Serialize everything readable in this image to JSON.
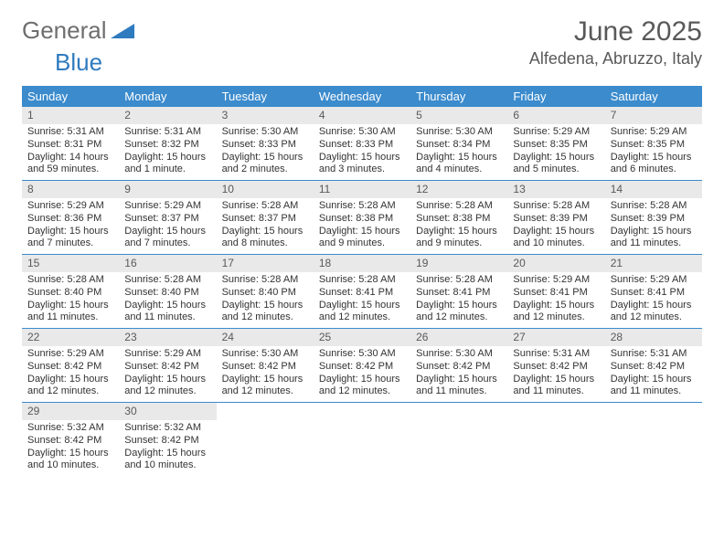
{
  "brand": {
    "word1": "General",
    "word2": "Blue"
  },
  "title": "June 2025",
  "location": "Alfedena, Abruzzo, Italy",
  "colors": {
    "accent": "#3b8bcd",
    "daynum_bg": "#e9e9e9",
    "text": "#333333",
    "muted": "#595959"
  },
  "day_headers": [
    "Sunday",
    "Monday",
    "Tuesday",
    "Wednesday",
    "Thursday",
    "Friday",
    "Saturday"
  ],
  "days": [
    {
      "n": "1",
      "sunrise": "Sunrise: 5:31 AM",
      "sunset": "Sunset: 8:31 PM",
      "daylight": "Daylight: 14 hours and 59 minutes."
    },
    {
      "n": "2",
      "sunrise": "Sunrise: 5:31 AM",
      "sunset": "Sunset: 8:32 PM",
      "daylight": "Daylight: 15 hours and 1 minute."
    },
    {
      "n": "3",
      "sunrise": "Sunrise: 5:30 AM",
      "sunset": "Sunset: 8:33 PM",
      "daylight": "Daylight: 15 hours and 2 minutes."
    },
    {
      "n": "4",
      "sunrise": "Sunrise: 5:30 AM",
      "sunset": "Sunset: 8:33 PM",
      "daylight": "Daylight: 15 hours and 3 minutes."
    },
    {
      "n": "5",
      "sunrise": "Sunrise: 5:30 AM",
      "sunset": "Sunset: 8:34 PM",
      "daylight": "Daylight: 15 hours and 4 minutes."
    },
    {
      "n": "6",
      "sunrise": "Sunrise: 5:29 AM",
      "sunset": "Sunset: 8:35 PM",
      "daylight": "Daylight: 15 hours and 5 minutes."
    },
    {
      "n": "7",
      "sunrise": "Sunrise: 5:29 AM",
      "sunset": "Sunset: 8:35 PM",
      "daylight": "Daylight: 15 hours and 6 minutes."
    },
    {
      "n": "8",
      "sunrise": "Sunrise: 5:29 AM",
      "sunset": "Sunset: 8:36 PM",
      "daylight": "Daylight: 15 hours and 7 minutes."
    },
    {
      "n": "9",
      "sunrise": "Sunrise: 5:29 AM",
      "sunset": "Sunset: 8:37 PM",
      "daylight": "Daylight: 15 hours and 7 minutes."
    },
    {
      "n": "10",
      "sunrise": "Sunrise: 5:28 AM",
      "sunset": "Sunset: 8:37 PM",
      "daylight": "Daylight: 15 hours and 8 minutes."
    },
    {
      "n": "11",
      "sunrise": "Sunrise: 5:28 AM",
      "sunset": "Sunset: 8:38 PM",
      "daylight": "Daylight: 15 hours and 9 minutes."
    },
    {
      "n": "12",
      "sunrise": "Sunrise: 5:28 AM",
      "sunset": "Sunset: 8:38 PM",
      "daylight": "Daylight: 15 hours and 9 minutes."
    },
    {
      "n": "13",
      "sunrise": "Sunrise: 5:28 AM",
      "sunset": "Sunset: 8:39 PM",
      "daylight": "Daylight: 15 hours and 10 minutes."
    },
    {
      "n": "14",
      "sunrise": "Sunrise: 5:28 AM",
      "sunset": "Sunset: 8:39 PM",
      "daylight": "Daylight: 15 hours and 11 minutes."
    },
    {
      "n": "15",
      "sunrise": "Sunrise: 5:28 AM",
      "sunset": "Sunset: 8:40 PM",
      "daylight": "Daylight: 15 hours and 11 minutes."
    },
    {
      "n": "16",
      "sunrise": "Sunrise: 5:28 AM",
      "sunset": "Sunset: 8:40 PM",
      "daylight": "Daylight: 15 hours and 11 minutes."
    },
    {
      "n": "17",
      "sunrise": "Sunrise: 5:28 AM",
      "sunset": "Sunset: 8:40 PM",
      "daylight": "Daylight: 15 hours and 12 minutes."
    },
    {
      "n": "18",
      "sunrise": "Sunrise: 5:28 AM",
      "sunset": "Sunset: 8:41 PM",
      "daylight": "Daylight: 15 hours and 12 minutes."
    },
    {
      "n": "19",
      "sunrise": "Sunrise: 5:28 AM",
      "sunset": "Sunset: 8:41 PM",
      "daylight": "Daylight: 15 hours and 12 minutes."
    },
    {
      "n": "20",
      "sunrise": "Sunrise: 5:29 AM",
      "sunset": "Sunset: 8:41 PM",
      "daylight": "Daylight: 15 hours and 12 minutes."
    },
    {
      "n": "21",
      "sunrise": "Sunrise: 5:29 AM",
      "sunset": "Sunset: 8:41 PM",
      "daylight": "Daylight: 15 hours and 12 minutes."
    },
    {
      "n": "22",
      "sunrise": "Sunrise: 5:29 AM",
      "sunset": "Sunset: 8:42 PM",
      "daylight": "Daylight: 15 hours and 12 minutes."
    },
    {
      "n": "23",
      "sunrise": "Sunrise: 5:29 AM",
      "sunset": "Sunset: 8:42 PM",
      "daylight": "Daylight: 15 hours and 12 minutes."
    },
    {
      "n": "24",
      "sunrise": "Sunrise: 5:30 AM",
      "sunset": "Sunset: 8:42 PM",
      "daylight": "Daylight: 15 hours and 12 minutes."
    },
    {
      "n": "25",
      "sunrise": "Sunrise: 5:30 AM",
      "sunset": "Sunset: 8:42 PM",
      "daylight": "Daylight: 15 hours and 12 minutes."
    },
    {
      "n": "26",
      "sunrise": "Sunrise: 5:30 AM",
      "sunset": "Sunset: 8:42 PM",
      "daylight": "Daylight: 15 hours and 11 minutes."
    },
    {
      "n": "27",
      "sunrise": "Sunrise: 5:31 AM",
      "sunset": "Sunset: 8:42 PM",
      "daylight": "Daylight: 15 hours and 11 minutes."
    },
    {
      "n": "28",
      "sunrise": "Sunrise: 5:31 AM",
      "sunset": "Sunset: 8:42 PM",
      "daylight": "Daylight: 15 hours and 11 minutes."
    },
    {
      "n": "29",
      "sunrise": "Sunrise: 5:32 AM",
      "sunset": "Sunset: 8:42 PM",
      "daylight": "Daylight: 15 hours and 10 minutes."
    },
    {
      "n": "30",
      "sunrise": "Sunrise: 5:32 AM",
      "sunset": "Sunset: 8:42 PM",
      "daylight": "Daylight: 15 hours and 10 minutes."
    }
  ]
}
